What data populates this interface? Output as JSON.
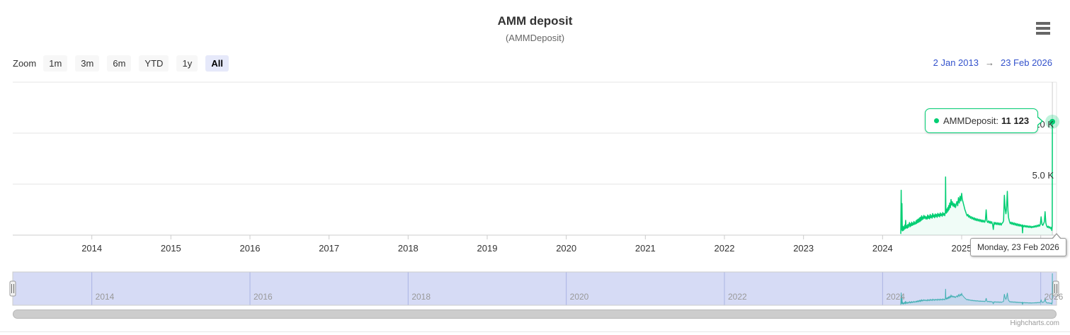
{
  "header": {
    "title": "AMM deposit",
    "subtitle": "(AMMDeposit)"
  },
  "range_selector": {
    "zoom_label": "Zoom",
    "buttons": [
      "1m",
      "3m",
      "6m",
      "YTD",
      "1y",
      "All"
    ],
    "selected": "All",
    "from": "2 Jan 2013",
    "arrow": "→",
    "to": "23 Feb 2026"
  },
  "tooltip": {
    "series_label": "AMMDeposit:",
    "value": "11 123"
  },
  "date_tooltip": {
    "text": "Monday, 23 Feb 2026"
  },
  "credits": "Highcharts.com",
  "colors": {
    "series": "#00ce73",
    "navigator_series": "#30c2a2",
    "navigator_mask": "rgba(108,124,220,0.28)",
    "grid": "#e6e6e6",
    "axis_line": "#cccccc",
    "crosshair": "#cccccc",
    "link_blue": "#3352cc"
  },
  "chart_data": {
    "type": "line",
    "title": "AMM deposit",
    "subtitle": "(AMMDeposit)",
    "x_unit": "decimal_year",
    "xlim": [
      2013.0,
      2026.2
    ],
    "ylim": [
      0,
      15000
    ],
    "x_ticks": [
      2014,
      2015,
      2016,
      2017,
      2018,
      2019,
      2020,
      2021,
      2022,
      2023,
      2024,
      2025,
      2026
    ],
    "y_ticks": [
      {
        "value": 5000,
        "label": "5.0 K"
      },
      {
        "value": 10000,
        "label": "10 K"
      },
      {
        "value": 15000,
        "label": ""
      }
    ],
    "navigator_ticks": [
      2014,
      2016,
      2018,
      2020,
      2022,
      2024,
      2026
    ],
    "last_point": {
      "date": "Monday, 23 Feb 2026",
      "value": 11123
    },
    "series": [
      {
        "name": "AMMDeposit",
        "points": [
          [
            2024.23,
            120
          ],
          [
            2024.235,
            4400
          ],
          [
            2024.24,
            520
          ],
          [
            2024.245,
            3100
          ],
          [
            2024.25,
            420
          ],
          [
            2024.256,
            880
          ],
          [
            2024.262,
            460
          ],
          [
            2024.268,
            820
          ],
          [
            2024.274,
            560
          ],
          [
            2024.28,
            980
          ],
          [
            2024.286,
            640
          ],
          [
            2024.292,
            1450
          ],
          [
            2024.298,
            700
          ],
          [
            2024.305,
            940
          ],
          [
            2024.312,
            680
          ],
          [
            2024.319,
            1060
          ],
          [
            2024.326,
            760
          ],
          [
            2024.333,
            980
          ],
          [
            2024.34,
            1240
          ],
          [
            2024.347,
            820
          ],
          [
            2024.354,
            1120
          ],
          [
            2024.361,
            900
          ],
          [
            2024.368,
            1280
          ],
          [
            2024.375,
            950
          ],
          [
            2024.382,
            1180
          ],
          [
            2024.389,
            1010
          ],
          [
            2024.396,
            1350
          ],
          [
            2024.403,
            1060
          ],
          [
            2024.41,
            1240
          ],
          [
            2024.417,
            1080
          ],
          [
            2024.424,
            1420
          ],
          [
            2024.431,
            1150
          ],
          [
            2024.438,
            1520
          ],
          [
            2024.445,
            1220
          ],
          [
            2024.452,
            1580
          ],
          [
            2024.459,
            1280
          ],
          [
            2024.466,
            1680
          ],
          [
            2024.473,
            1340
          ],
          [
            2024.48,
            1760
          ],
          [
            2024.487,
            1420
          ],
          [
            2024.494,
            1900
          ],
          [
            2024.501,
            1520
          ],
          [
            2024.508,
            1780
          ],
          [
            2024.515,
            1580
          ],
          [
            2024.522,
            1940
          ],
          [
            2024.53,
            1660
          ],
          [
            2024.538,
            1860
          ],
          [
            2024.546,
            1590
          ],
          [
            2024.554,
            1800
          ],
          [
            2024.562,
            1560
          ],
          [
            2024.57,
            1980
          ],
          [
            2024.578,
            1640
          ],
          [
            2024.586,
            1880
          ],
          [
            2024.594,
            1600
          ],
          [
            2024.602,
            2040
          ],
          [
            2024.61,
            1720
          ],
          [
            2024.618,
            1920
          ],
          [
            2024.626,
            1660
          ],
          [
            2024.634,
            2120
          ],
          [
            2024.642,
            1780
          ],
          [
            2024.65,
            1980
          ],
          [
            2024.658,
            1700
          ],
          [
            2024.666,
            2080
          ],
          [
            2024.674,
            1820
          ],
          [
            2024.682,
            2020
          ],
          [
            2024.69,
            1740
          ],
          [
            2024.698,
            2140
          ],
          [
            2024.706,
            1860
          ],
          [
            2024.714,
            2060
          ],
          [
            2024.722,
            1790
          ],
          [
            2024.73,
            2180
          ],
          [
            2024.738,
            1920
          ],
          [
            2024.746,
            2080
          ],
          [
            2024.754,
            1840
          ],
          [
            2024.762,
            2220
          ],
          [
            2024.77,
            1960
          ],
          [
            2024.778,
            2120
          ],
          [
            2024.786,
            1900
          ],
          [
            2024.794,
            2300
          ],
          [
            2024.797,
            5700
          ],
          [
            2024.8,
            2400
          ],
          [
            2024.806,
            2150
          ],
          [
            2024.812,
            2550
          ],
          [
            2024.818,
            2250
          ],
          [
            2024.824,
            2700
          ],
          [
            2024.83,
            2380
          ],
          [
            2024.836,
            2900
          ],
          [
            2024.842,
            2520
          ],
          [
            2024.85,
            3150
          ],
          [
            2024.858,
            2700
          ],
          [
            2024.866,
            3500
          ],
          [
            2024.874,
            2950
          ],
          [
            2024.882,
            3280
          ],
          [
            2024.89,
            2850
          ],
          [
            2024.898,
            3120
          ],
          [
            2024.906,
            2780
          ],
          [
            2024.914,
            3060
          ],
          [
            2024.922,
            2700
          ],
          [
            2024.93,
            2980
          ],
          [
            2024.94,
            3300
          ],
          [
            2024.95,
            2880
          ],
          [
            2024.96,
            3680
          ],
          [
            2024.97,
            3150
          ],
          [
            2024.98,
            3820
          ],
          [
            2024.99,
            3350
          ],
          [
            2025.0,
            4100
          ],
          [
            2025.008,
            3500
          ],
          [
            2025.016,
            3280
          ],
          [
            2025.024,
            3020
          ],
          [
            2025.032,
            2780
          ],
          [
            2025.04,
            2520
          ],
          [
            2025.05,
            2300
          ],
          [
            2025.06,
            2060
          ],
          [
            2025.07,
            1880
          ],
          [
            2025.08,
            2040
          ],
          [
            2025.09,
            1760
          ],
          [
            2025.1,
            1920
          ],
          [
            2025.11,
            1660
          ],
          [
            2025.12,
            1820
          ],
          [
            2025.13,
            1580
          ],
          [
            2025.14,
            1760
          ],
          [
            2025.15,
            1520
          ],
          [
            2025.16,
            1700
          ],
          [
            2025.17,
            1460
          ],
          [
            2025.18,
            1640
          ],
          [
            2025.19,
            1420
          ],
          [
            2025.2,
            1600
          ],
          [
            2025.21,
            1380
          ],
          [
            2025.22,
            1560
          ],
          [
            2025.23,
            1340
          ],
          [
            2025.24,
            1520
          ],
          [
            2025.25,
            1300
          ],
          [
            2025.26,
            1480
          ],
          [
            2025.27,
            1280
          ],
          [
            2025.28,
            1460
          ],
          [
            2025.29,
            1260
          ],
          [
            2025.3,
            1440
          ],
          [
            2025.31,
            2480
          ],
          [
            2025.32,
            1380
          ],
          [
            2025.33,
            1240
          ],
          [
            2025.34,
            1400
          ],
          [
            2025.35,
            1180
          ],
          [
            2025.36,
            1360
          ],
          [
            2025.37,
            1140
          ],
          [
            2025.38,
            1320
          ],
          [
            2025.39,
            1100
          ],
          [
            2025.4,
            560
          ],
          [
            2025.41,
            1260
          ],
          [
            2025.42,
            1060
          ],
          [
            2025.43,
            1240
          ],
          [
            2025.44,
            1040
          ],
          [
            2025.45,
            1220
          ],
          [
            2025.46,
            1020
          ],
          [
            2025.47,
            1200
          ],
          [
            2025.48,
            1000
          ],
          [
            2025.49,
            1180
          ],
          [
            2025.5,
            980
          ],
          [
            2025.51,
            1160
          ],
          [
            2025.52,
            1220
          ],
          [
            2025.53,
            1420
          ],
          [
            2025.54,
            3900
          ],
          [
            2025.55,
            2600
          ],
          [
            2025.56,
            2100
          ],
          [
            2025.57,
            2900
          ],
          [
            2025.578,
            4300
          ],
          [
            2025.586,
            2400
          ],
          [
            2025.594,
            1700
          ],
          [
            2025.605,
            1320
          ],
          [
            2025.615,
            1120
          ],
          [
            2025.625,
            1280
          ],
          [
            2025.635,
            1060
          ],
          [
            2025.645,
            1240
          ],
          [
            2025.655,
            1020
          ],
          [
            2025.665,
            1200
          ],
          [
            2025.675,
            980
          ],
          [
            2025.685,
            1160
          ],
          [
            2025.695,
            940
          ],
          [
            2025.705,
            1120
          ],
          [
            2025.715,
            900
          ],
          [
            2025.725,
            1080
          ],
          [
            2025.735,
            880
          ],
          [
            2025.745,
            1040
          ],
          [
            2025.755,
            860
          ],
          [
            2025.765,
            1000
          ],
          [
            2025.77,
            220
          ],
          [
            2025.775,
            980
          ],
          [
            2025.785,
            820
          ],
          [
            2025.795,
            960
          ],
          [
            2025.805,
            800
          ],
          [
            2025.815,
            940
          ],
          [
            2025.825,
            780
          ],
          [
            2025.835,
            920
          ],
          [
            2025.845,
            760
          ],
          [
            2025.855,
            900
          ],
          [
            2025.865,
            740
          ],
          [
            2025.875,
            880
          ],
          [
            2025.885,
            720
          ],
          [
            2025.895,
            860
          ],
          [
            2025.905,
            760
          ],
          [
            2025.915,
            900
          ],
          [
            2025.925,
            780
          ],
          [
            2025.935,
            940
          ],
          [
            2025.945,
            800
          ],
          [
            2025.955,
            980
          ],
          [
            2025.965,
            840
          ],
          [
            2025.975,
            1020
          ],
          [
            2025.985,
            880
          ],
          [
            2025.995,
            1060
          ],
          [
            2026.005,
            1800
          ],
          [
            2026.015,
            1100
          ],
          [
            2026.025,
            960
          ],
          [
            2026.035,
            1120
          ],
          [
            2026.045,
            1300
          ],
          [
            2026.055,
            2300
          ],
          [
            2026.065,
            1200
          ],
          [
            2026.075,
            900
          ],
          [
            2026.085,
            760
          ],
          [
            2026.095,
            880
          ],
          [
            2026.105,
            700
          ],
          [
            2026.115,
            820
          ],
          [
            2026.125,
            640
          ],
          [
            2026.135,
            760
          ],
          [
            2026.14,
            460
          ],
          [
            2026.145,
            900
          ],
          [
            2026.147,
            11123
          ]
        ]
      }
    ]
  }
}
